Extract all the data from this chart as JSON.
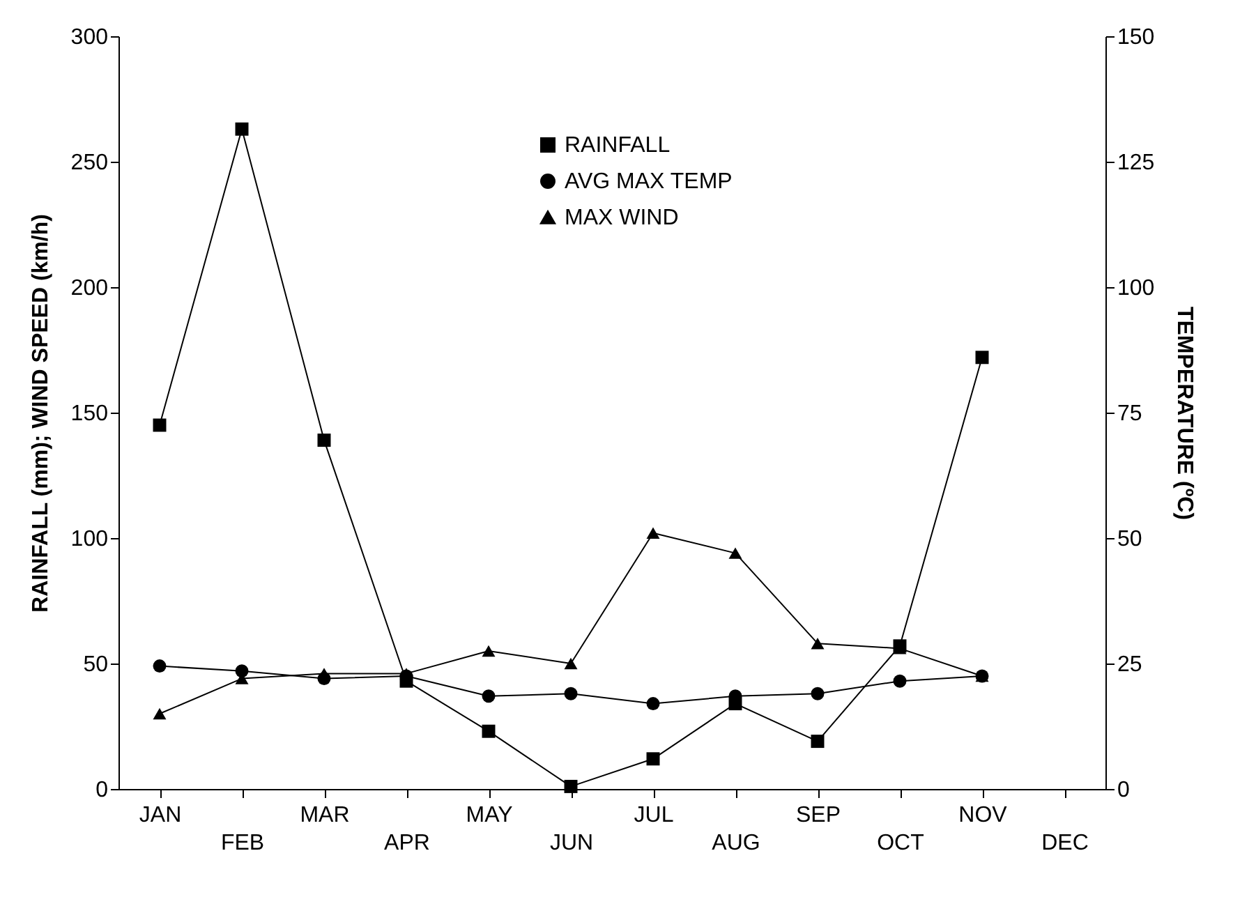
{
  "chart_data": {
    "type": "line",
    "categories": [
      "JAN",
      "FEB",
      "MAR",
      "APR",
      "MAY",
      "JUN",
      "JUL",
      "AUG",
      "SEP",
      "OCT",
      "NOV",
      "DEC"
    ],
    "ylabel": "RAINFALL (mm);  WIND SPEED (km/h)",
    "y2label": "TEMPERATURE (ºC)",
    "ylim": [
      0,
      300
    ],
    "yticks": [
      0,
      50,
      100,
      150,
      200,
      250,
      300
    ],
    "y2lim": [
      0,
      150
    ],
    "y2ticks": [
      0,
      25,
      50,
      75,
      100,
      125,
      150
    ],
    "grid": false,
    "legend": "top",
    "line_style": "solid",
    "series": [
      {
        "name": "RAINFALL",
        "color": "#000000",
        "marker": "square",
        "values": [
          145,
          263,
          139,
          43,
          23,
          1,
          12,
          34,
          19,
          57,
          172,
          null
        ]
      },
      {
        "name": "AVG MAX TEMP",
        "color": "#000000",
        "marker": "circle",
        "axis": "y2",
        "values": [
          24.5,
          23.5,
          22,
          22.5,
          18.5,
          19,
          17,
          18.5,
          19,
          21.5,
          22.5,
          null
        ]
      },
      {
        "name": "MAX WIND",
        "color": "#000000",
        "marker": "triangle",
        "values": [
          30,
          44,
          46,
          46,
          55,
          50,
          102,
          94,
          58,
          56,
          45,
          null
        ]
      }
    ]
  }
}
